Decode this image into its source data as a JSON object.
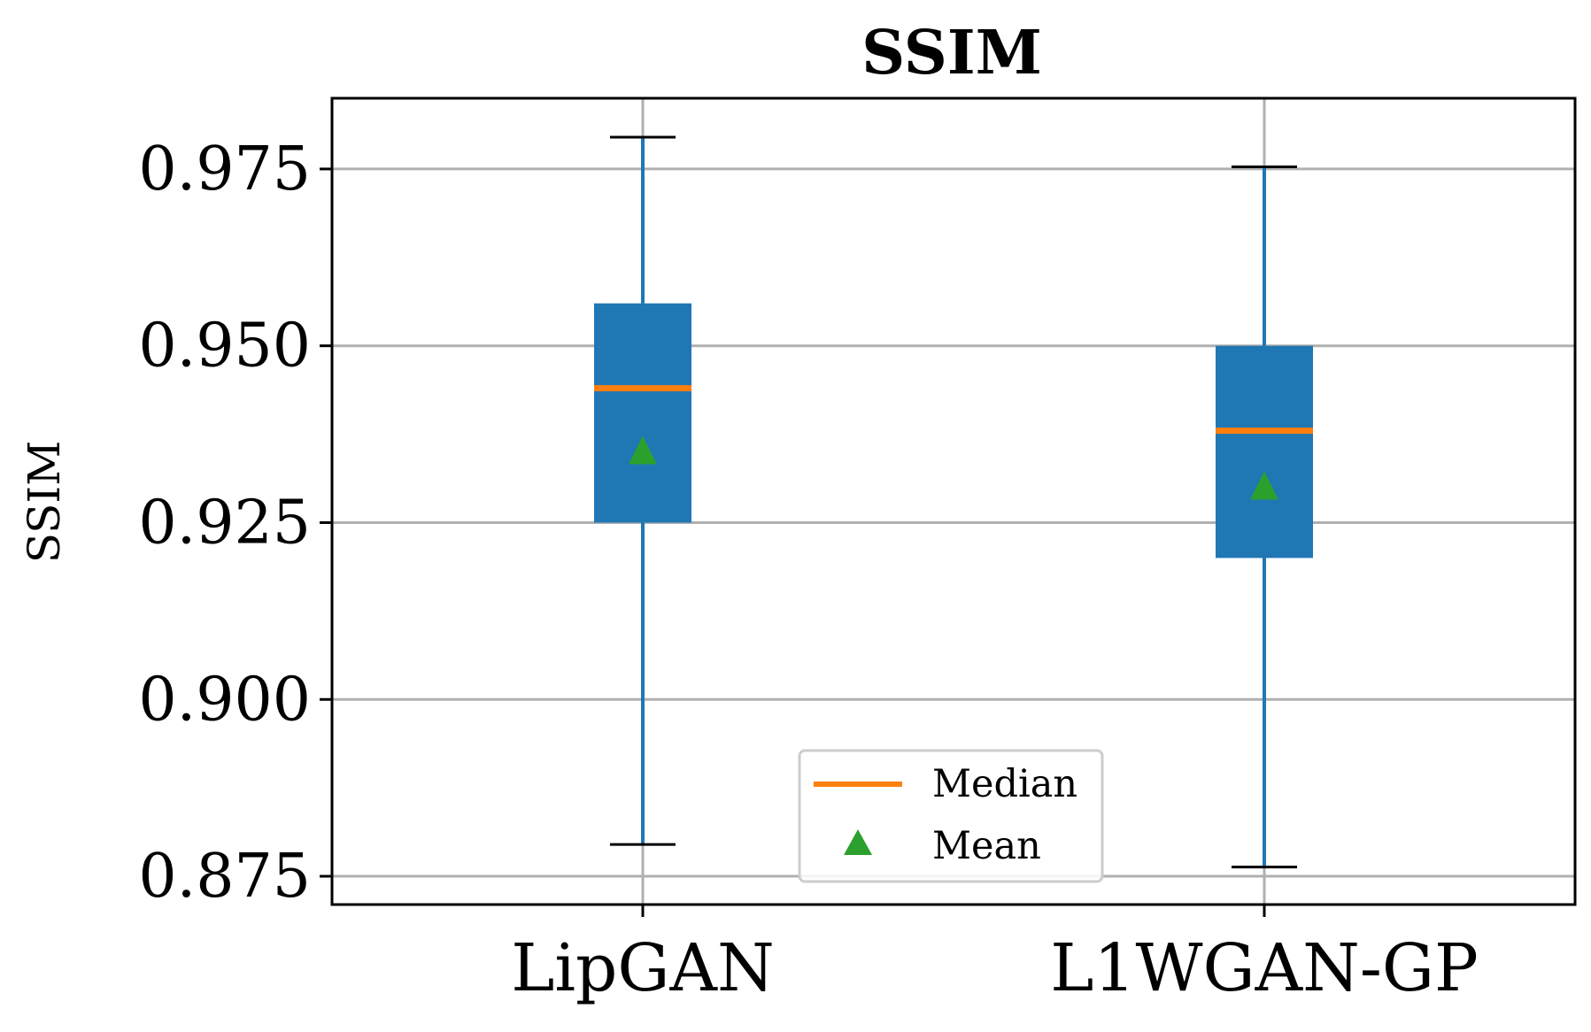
{
  "chart_data": {
    "type": "box",
    "title": "SSIM",
    "xlabel": "",
    "ylabel": "SSIM",
    "ylim": [
      0.871,
      0.985
    ],
    "yticks": [
      0.875,
      0.9,
      0.925,
      0.95,
      0.975
    ],
    "ytick_labels": [
      "0.875",
      "0.900",
      "0.925",
      "0.950",
      "0.975"
    ],
    "grid": true,
    "categories": [
      "LipGAN",
      "L1WGAN-GP"
    ],
    "boxes": [
      {
        "name": "LipGAN",
        "whisker_low": 0.8795,
        "q1": 0.925,
        "median": 0.944,
        "q3": 0.956,
        "whisker_high": 0.9795,
        "mean": 0.935
      },
      {
        "name": "L1WGAN-GP",
        "whisker_low": 0.8763,
        "q1": 0.92,
        "median": 0.938,
        "q3": 0.95,
        "whisker_high": 0.9753,
        "mean": 0.93
      }
    ],
    "legend": {
      "position": "lower center",
      "entries": [
        {
          "label": "Median",
          "marker": "line"
        },
        {
          "label": "Mean",
          "marker": "triangle"
        }
      ]
    },
    "colors": {
      "box": "#1f77b4",
      "median": "#ff7f0e",
      "mean": "#2ca02c",
      "whisker": "#1f77b4",
      "cap": "#000000",
      "grid": "#b0b0b0"
    }
  }
}
